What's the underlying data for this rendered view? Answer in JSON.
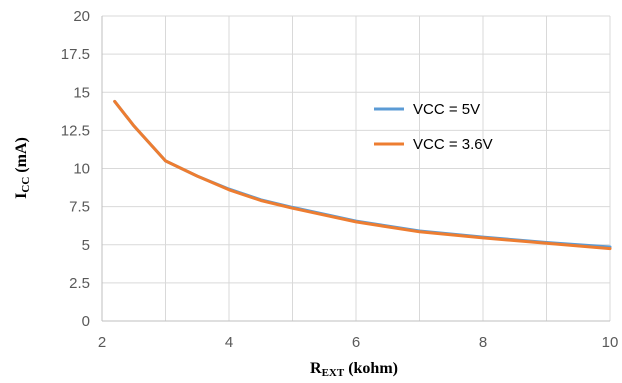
{
  "chart_data": {
    "type": "line",
    "xlabel": {
      "main": "R",
      "sub": "EXT",
      "rest": " (kohm)"
    },
    "ylabel": {
      "main": "I",
      "sub": "CC",
      "rest": " (mA)"
    },
    "xlim": [
      2,
      10
    ],
    "ylim": [
      0,
      20
    ],
    "x_ticks": [
      2,
      4,
      6,
      8,
      10
    ],
    "y_ticks": [
      0,
      2.5,
      5,
      7.5,
      10,
      12.5,
      15,
      17.5,
      20
    ],
    "x_tick_labels": [
      "2",
      "4",
      "6",
      "8",
      "10"
    ],
    "y_tick_labels": [
      "0",
      "2.5",
      "5",
      "7.5",
      "10",
      "12.5",
      "15",
      "17.5",
      "20"
    ],
    "vertical_gridlines_at": [
      3,
      4,
      5,
      6,
      7,
      8,
      9,
      10
    ],
    "grid": true,
    "legend_position": "inside-right",
    "series": [
      {
        "name": "VCC = 5V",
        "color": "#5b9bd5",
        "x": [
          2.2,
          2.5,
          3.0,
          3.5,
          4.0,
          4.5,
          5.0,
          6.0,
          7.0,
          8.0,
          9.0,
          10.0
        ],
        "y": [
          14.4,
          12.8,
          10.5,
          9.5,
          8.65,
          7.95,
          7.45,
          6.55,
          5.9,
          5.5,
          5.15,
          4.85
        ]
      },
      {
        "name": "VCC = 3.6V",
        "color": "#ed7d31",
        "x": [
          2.2,
          2.5,
          3.0,
          3.5,
          4.0,
          4.5,
          5.0,
          6.0,
          7.0,
          8.0,
          9.0,
          10.0
        ],
        "y": [
          14.4,
          12.8,
          10.5,
          9.5,
          8.6,
          7.9,
          7.4,
          6.5,
          5.85,
          5.45,
          5.1,
          4.75
        ]
      }
    ]
  }
}
